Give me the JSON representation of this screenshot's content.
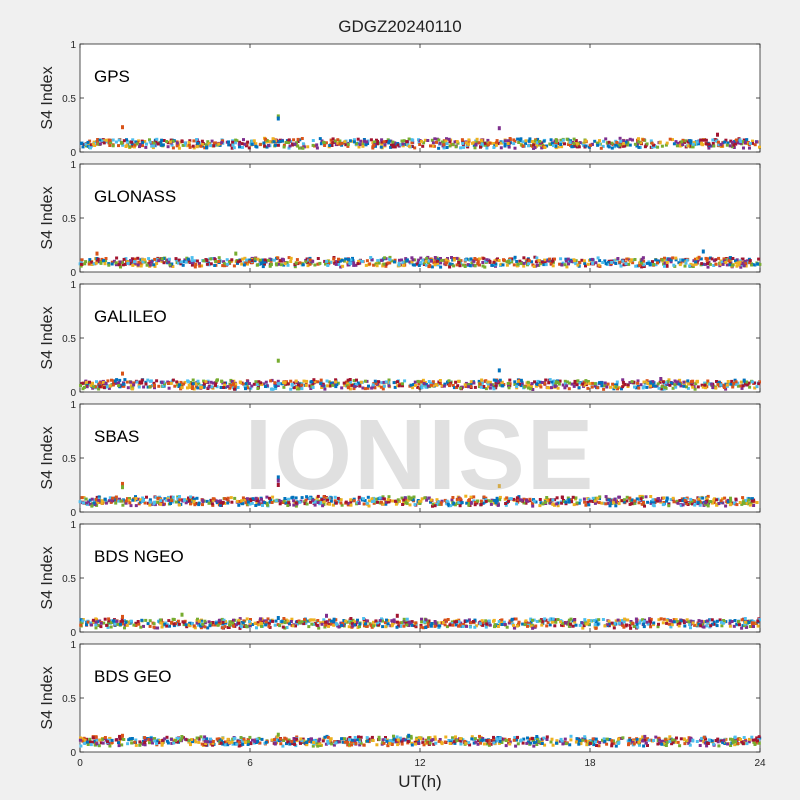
{
  "figure": {
    "title": "GDGZ20240110",
    "xlabel": "UT(h)",
    "watermark": "IONISE"
  },
  "colors": [
    "#0072BD",
    "#D95319",
    "#EDB120",
    "#7E2F8E",
    "#77AC30",
    "#4DBEEE",
    "#A2142F"
  ],
  "chart_data": [
    {
      "type": "scatter",
      "panel": "GPS",
      "ylabel": "S4 Index",
      "xlim": [
        0,
        24
      ],
      "ylim": [
        0,
        1
      ],
      "x_ticks": [
        0,
        6,
        12,
        18,
        24
      ],
      "y_ticks": [
        0,
        0.5,
        1
      ],
      "y_tick_labels": [
        "0",
        "0.5",
        "1"
      ],
      "baseline_s4": 0.08,
      "outliers": [
        {
          "x": 1.5,
          "y": 0.23
        },
        {
          "x": 7.0,
          "y": 0.33
        },
        {
          "x": 7.0,
          "y": 0.31
        },
        {
          "x": 14.8,
          "y": 0.22
        },
        {
          "x": 22.5,
          "y": 0.16
        }
      ]
    },
    {
      "type": "scatter",
      "panel": "GLONASS",
      "ylabel": "S4 Index",
      "xlim": [
        0,
        24
      ],
      "ylim": [
        0,
        1
      ],
      "x_ticks": [
        0,
        6,
        12,
        18,
        24
      ],
      "y_ticks": [
        0,
        0.5,
        1
      ],
      "y_tick_labels": [
        "0",
        "0.5",
        "1"
      ],
      "baseline_s4": 0.09,
      "outliers": [
        {
          "x": 0.6,
          "y": 0.17
        },
        {
          "x": 5.5,
          "y": 0.17
        },
        {
          "x": 22.0,
          "y": 0.19
        }
      ]
    },
    {
      "type": "scatter",
      "panel": "GALILEO",
      "ylabel": "S4 Index",
      "xlim": [
        0,
        24
      ],
      "ylim": [
        0,
        1
      ],
      "x_ticks": [
        0,
        6,
        12,
        18,
        24
      ],
      "y_ticks": [
        0,
        0.5,
        1
      ],
      "y_tick_labels": [
        "0",
        "0.5",
        "1"
      ],
      "baseline_s4": 0.07,
      "outliers": [
        {
          "x": 1.5,
          "y": 0.17
        },
        {
          "x": 7.0,
          "y": 0.29
        },
        {
          "x": 14.8,
          "y": 0.2
        },
        {
          "x": 20.5,
          "y": 0.12
        }
      ]
    },
    {
      "type": "scatter",
      "panel": "SBAS",
      "ylabel": "S4 Index",
      "xlim": [
        0,
        24
      ],
      "ylim": [
        0,
        1
      ],
      "x_ticks": [
        0,
        6,
        12,
        18,
        24
      ],
      "y_ticks": [
        0,
        0.5,
        1
      ],
      "y_tick_labels": [
        "0",
        "0.5",
        "1"
      ],
      "baseline_s4": 0.1,
      "outliers": [
        {
          "x": 1.5,
          "y": 0.26
        },
        {
          "x": 1.5,
          "y": 0.23
        },
        {
          "x": 7.0,
          "y": 0.32
        },
        {
          "x": 7.0,
          "y": 0.29
        },
        {
          "x": 7.0,
          "y": 0.25
        },
        {
          "x": 14.8,
          "y": 0.24
        }
      ]
    },
    {
      "type": "scatter",
      "panel": "BDS NGEO",
      "ylabel": "S4 Index",
      "xlim": [
        0,
        24
      ],
      "ylim": [
        0,
        1
      ],
      "x_ticks": [
        0,
        6,
        12,
        18,
        24
      ],
      "y_ticks": [
        0,
        0.5,
        1
      ],
      "y_tick_labels": [
        "0",
        "0.5",
        "1"
      ],
      "baseline_s4": 0.08,
      "outliers": [
        {
          "x": 1.5,
          "y": 0.14
        },
        {
          "x": 3.6,
          "y": 0.16
        },
        {
          "x": 7.0,
          "y": 0.13
        },
        {
          "x": 8.7,
          "y": 0.15
        },
        {
          "x": 11.2,
          "y": 0.15
        }
      ]
    },
    {
      "type": "scatter",
      "panel": "BDS GEO",
      "ylabel": "S4 Index",
      "xlim": [
        0,
        24
      ],
      "ylim": [
        0,
        1
      ],
      "x_ticks": [
        0,
        6,
        12,
        18,
        24
      ],
      "y_ticks": [
        0,
        0.5,
        1
      ],
      "y_tick_labels": [
        "0",
        "0.5",
        "1"
      ],
      "baseline_s4": 0.1,
      "outliers": [
        {
          "x": 1.5,
          "y": 0.15
        },
        {
          "x": 7.0,
          "y": 0.16
        },
        {
          "x": 11.6,
          "y": 0.15
        }
      ]
    }
  ]
}
